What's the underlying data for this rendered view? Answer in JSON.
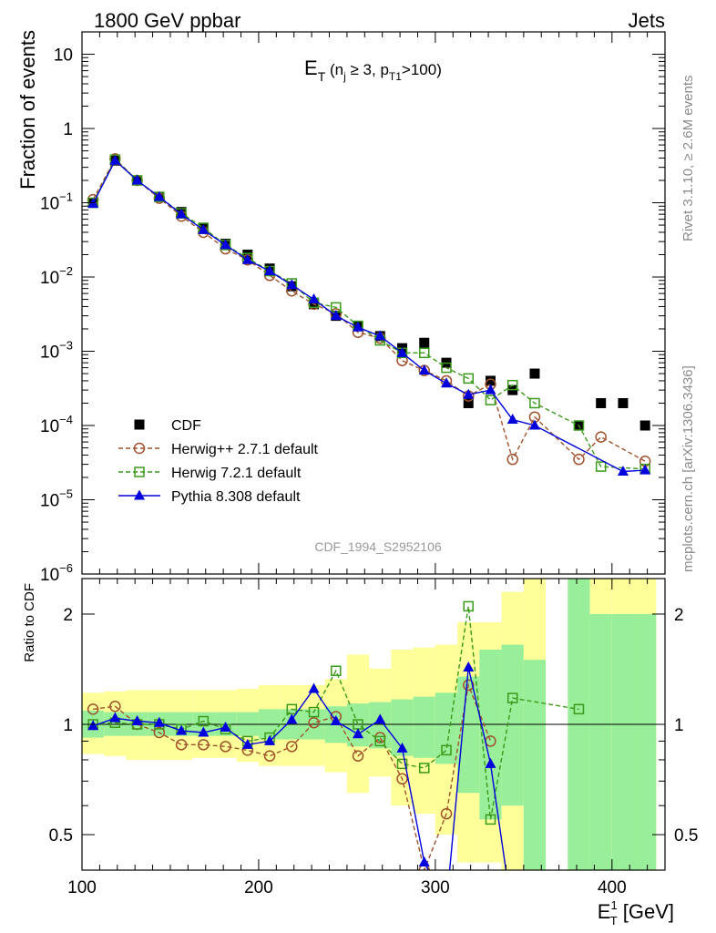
{
  "header": {
    "left_text": "1800 GeV ppbar",
    "right_text": "Jets"
  },
  "side_labels": {
    "rivet": "Rivet 3.1.10, ≥ 2.6M events",
    "mcplots": "mcplots.cern.ch [arXiv:1306.3436]"
  },
  "colors": {
    "cdf": "#000000",
    "herwigpp": "#a0522d",
    "herwig7": "#3a9a1a",
    "pythia": "#0000dd",
    "band_inner": "#99ee99",
    "band_outer": "#ffff99"
  },
  "chart_data": [
    {
      "type": "scatter",
      "panel": "main",
      "title": "E_T (n_j ≥ 3, p_T1>100)",
      "title_parts": {
        "main": "E",
        "sub1": "T",
        "mid1": " (n",
        "sub2": "j",
        "mid2": " ≥ 3, p",
        "sub3": "T1",
        "end": ">100)"
      },
      "watermark": "CDF_1994_S2952106",
      "ylabel": "Fraction of events",
      "yscale": "log",
      "ylim": [
        1e-06,
        20
      ],
      "xlim": [
        100,
        430
      ],
      "ytick_labels": [
        {
          "value": 10,
          "base": "10",
          "exp": ""
        },
        {
          "value": 1,
          "base": "1",
          "exp": ""
        },
        {
          "value": 0.1,
          "base": "10",
          "exp": "−1"
        },
        {
          "value": 0.01,
          "base": "10",
          "exp": "−2"
        },
        {
          "value": 0.001,
          "base": "10",
          "exp": "−3"
        },
        {
          "value": 0.0001,
          "base": "10",
          "exp": "−4"
        },
        {
          "value": 1e-05,
          "base": "10",
          "exp": "−5"
        },
        {
          "value": 1e-06,
          "base": "10",
          "exp": "−6"
        }
      ],
      "legend_position": "bottom-left",
      "series": [
        {
          "name": "CDF",
          "style": "data",
          "x": [
            106.25,
            118.75,
            131.25,
            143.75,
            156.25,
            168.75,
            181.25,
            193.75,
            206.25,
            218.75,
            231.25,
            243.75,
            256.25,
            268.75,
            281.25,
            293.75,
            306.25,
            318.75,
            331.25,
            343.75,
            356.25,
            381.25,
            393.75,
            406.25,
            418.75
          ],
          "y": [
            0.1,
            0.37,
            0.2,
            0.12,
            0.075,
            0.045,
            0.028,
            0.02,
            0.013,
            0.0075,
            0.0043,
            0.003,
            0.0022,
            0.0016,
            0.0011,
            0.0013,
            0.0007,
            0.0002,
            0.0004,
            0.0003,
            0.0005,
            0.0001,
            0.0002,
            0.0002,
            0.0001
          ]
        },
        {
          "name": "Herwig++ 2.7.1 default",
          "style": "circle",
          "x": [
            106.25,
            118.75,
            131.25,
            143.75,
            156.25,
            168.75,
            181.25,
            193.75,
            206.25,
            218.75,
            231.25,
            243.75,
            256.25,
            268.75,
            281.25,
            293.75,
            306.25,
            318.75,
            331.25,
            343.75,
            356.25,
            381.25,
            393.75,
            418.75
          ],
          "y": [
            0.11,
            0.39,
            0.2,
            0.115,
            0.066,
            0.04,
            0.024,
            0.017,
            0.0105,
            0.0065,
            0.0043,
            0.0032,
            0.0018,
            0.0015,
            0.00075,
            0.00055,
            0.0004,
            0.00025,
            0.00036,
            3.5e-05,
            0.00013,
            3.5e-05,
            7e-05,
            3.3e-05
          ]
        },
        {
          "name": "Herwig 7.2.1 default",
          "style": "square",
          "x": [
            106.25,
            118.75,
            131.25,
            143.75,
            156.25,
            168.75,
            181.25,
            193.75,
            206.25,
            218.75,
            231.25,
            243.75,
            256.25,
            268.75,
            281.25,
            293.75,
            306.25,
            318.75,
            331.25,
            343.75,
            356.25,
            381.25,
            393.75,
            418.75
          ],
          "y": [
            0.1,
            0.38,
            0.2,
            0.12,
            0.072,
            0.046,
            0.027,
            0.018,
            0.012,
            0.0082,
            0.0045,
            0.0039,
            0.0022,
            0.0014,
            0.00095,
            0.00095,
            0.0006,
            0.00043,
            0.00022,
            0.00035,
            0.0002,
            0.0001,
            2.8e-05,
            2.6e-05
          ]
        },
        {
          "name": "Pythia 8.308 default",
          "style": "triangle",
          "x": [
            106.25,
            118.75,
            131.25,
            143.75,
            156.25,
            168.75,
            181.25,
            193.75,
            206.25,
            218.75,
            231.25,
            243.75,
            256.25,
            268.75,
            281.25,
            293.75,
            306.25,
            318.75,
            331.25,
            343.75,
            356.25,
            406.25,
            418.75
          ],
          "y": [
            0.097,
            0.37,
            0.2,
            0.12,
            0.07,
            0.043,
            0.027,
            0.017,
            0.012,
            0.0078,
            0.005,
            0.003,
            0.0021,
            0.0016,
            0.00095,
            0.00055,
            0.00037,
            0.00026,
            0.0003,
            0.00012,
            0.0001,
            2.4e-05,
            2.5e-05
          ]
        }
      ]
    },
    {
      "type": "line",
      "panel": "ratio",
      "ylabel": "Ratio to CDF",
      "xlabel": "E_T^1 [GeV]",
      "xlabel_parts": {
        "main": "E",
        "sup": "1",
        "sub": "T",
        "end": " [GeV]"
      },
      "yscale": "log",
      "ylim": [
        0.4,
        2.5
      ],
      "xlim": [
        100,
        430
      ],
      "xtick_labels": [
        "100",
        "200",
        "300",
        "400"
      ],
      "xticks": [
        100,
        200,
        300,
        400
      ],
      "ytick_labels": [
        "2",
        "1",
        "0.5"
      ],
      "yticks": [
        2,
        1,
        0.5
      ],
      "bands": {
        "edges": [
          100,
          112.5,
          125,
          137.5,
          150,
          162.5,
          175,
          187.5,
          200,
          212.5,
          225,
          237.5,
          250,
          262.5,
          275,
          287.5,
          300,
          312.5,
          325,
          337.5,
          350,
          362.5,
          375,
          387.5,
          400,
          412.5,
          425
        ],
        "inner_lo": [
          0.92,
          0.93,
          0.93,
          0.93,
          0.93,
          0.93,
          0.93,
          0.93,
          0.91,
          0.91,
          0.91,
          0.89,
          0.87,
          0.86,
          0.82,
          0.81,
          0.78,
          0.65,
          0.55,
          0.6,
          0.4,
          null,
          0.35,
          0.35,
          0.35,
          0.35
        ],
        "inner_hi": [
          1.09,
          1.08,
          1.08,
          1.08,
          1.08,
          1.08,
          1.08,
          1.08,
          1.1,
          1.1,
          1.1,
          1.12,
          1.14,
          1.15,
          1.17,
          1.19,
          1.22,
          1.35,
          1.6,
          1.65,
          1.5,
          null,
          2.5,
          2.0,
          2.0,
          2.0
        ],
        "outer_lo": [
          0.83,
          0.82,
          0.8,
          0.8,
          0.8,
          0.81,
          0.81,
          0.79,
          0.77,
          0.77,
          0.77,
          0.74,
          0.65,
          0.72,
          0.6,
          0.57,
          0.5,
          0.42,
          0.42,
          0.4,
          0.4,
          null,
          0.35,
          0.35,
          0.35,
          0.35
        ],
        "outer_hi": [
          1.22,
          1.23,
          1.24,
          1.24,
          1.24,
          1.24,
          1.24,
          1.25,
          1.28,
          1.28,
          1.28,
          1.33,
          1.55,
          1.42,
          1.6,
          1.62,
          1.65,
          1.9,
          1.9,
          2.3,
          2.5,
          null,
          2.5,
          2.5,
          2.5,
          2.5
        ]
      },
      "series": [
        {
          "name": "Herwig++ 2.7.1 default",
          "style": "circle",
          "x": [
            106.25,
            118.75,
            131.25,
            143.75,
            156.25,
            168.75,
            181.25,
            193.75,
            206.25,
            218.75,
            231.25,
            243.75,
            256.25,
            268.75,
            281.25,
            293.75,
            306.25,
            318.75,
            331.25
          ],
          "y": [
            1.1,
            1.12,
            1.0,
            0.95,
            0.88,
            0.88,
            0.87,
            0.85,
            0.82,
            0.87,
            1.01,
            1.05,
            0.82,
            0.92,
            0.71,
            0.4,
            0.57,
            1.28,
            0.9
          ]
        },
        {
          "name": "Herwig 7.2.1 default",
          "style": "square",
          "x": [
            106.25,
            118.75,
            131.25,
            143.75,
            156.25,
            168.75,
            181.25,
            193.75,
            206.25,
            218.75,
            231.25,
            243.75,
            256.25,
            268.75,
            281.25,
            293.75,
            306.25,
            318.75,
            331.25,
            343.75,
            381.25
          ],
          "y": [
            1.0,
            1.01,
            1.0,
            1.0,
            0.97,
            1.02,
            0.97,
            0.9,
            0.92,
            1.1,
            1.08,
            1.4,
            1.0,
            0.9,
            0.78,
            0.76,
            0.85,
            2.1,
            0.55,
            1.18,
            1.1
          ]
        },
        {
          "name": "Pythia 8.308 default",
          "style": "triangle",
          "x": [
            106.25,
            118.75,
            131.25,
            143.75,
            156.25,
            168.75,
            181.25,
            193.75,
            206.25,
            218.75,
            231.25,
            243.75,
            256.25,
            268.75,
            281.25,
            293.75,
            306.25,
            318.75,
            331.25,
            343.75
          ],
          "y": [
            0.99,
            1.04,
            1.02,
            1.01,
            0.96,
            0.95,
            0.98,
            0.88,
            0.9,
            1.03,
            1.25,
            1.02,
            0.94,
            1.03,
            0.86,
            0.42,
            0.32,
            1.43,
            0.78,
            0.3
          ]
        }
      ]
    }
  ]
}
